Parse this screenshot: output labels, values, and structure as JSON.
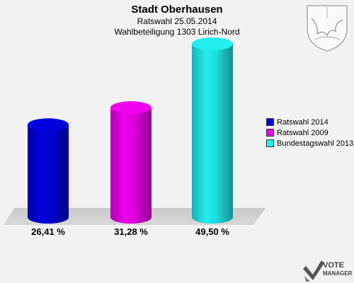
{
  "header": {
    "title": "Stadt Oberhausen",
    "subtitle1": "Ratswahl 25.05.2014",
    "subtitle2": "Wahlbeteiligung 1303 Lirich-Nord"
  },
  "chart_data": {
    "type": "bar",
    "categories": [
      "Ratswahl 2014",
      "Ratswahl 2009",
      "Bundestagswahl 2013"
    ],
    "values": [
      26.41,
      31.28,
      49.5
    ],
    "value_labels": [
      "26,41 %",
      "31,28 %",
      "49,50 %"
    ],
    "colors": [
      "#0000dd",
      "#ee00ee",
      "#22eeee"
    ],
    "legend_position": "right",
    "grid": false
  },
  "legend": {
    "items": [
      {
        "label": "Ratswahl 2014",
        "color": "#0000dd"
      },
      {
        "label": "Ratswahl 2009",
        "color": "#ee00ee"
      },
      {
        "label": "Bundestagswahl 2013",
        "color": "#22eeee"
      }
    ]
  },
  "branding": {
    "logo_text_top": "VOTE",
    "logo_text_bottom": "MANAGER",
    "logo_icon": "vote-manager-logo-icon",
    "crest_icon": "coat-of-arms-icon"
  }
}
